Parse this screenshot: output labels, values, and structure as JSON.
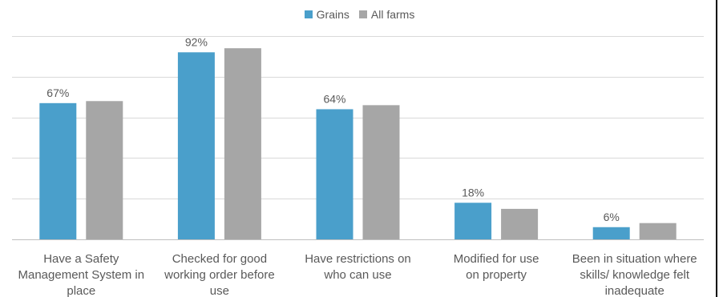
{
  "chart_data": {
    "type": "bar",
    "categories": [
      [
        "Have a Safety",
        "Management System in",
        "place"
      ],
      [
        "Checked for good",
        "working order before",
        "use"
      ],
      [
        "Have restrictions on",
        "who can use"
      ],
      [
        "Modified for use",
        "on property"
      ],
      [
        "Been in situation where",
        "skills/ knowledge felt",
        "inadequate"
      ]
    ],
    "series": [
      {
        "name": "Grains",
        "values": [
          67,
          92,
          64,
          18,
          6
        ],
        "labels": [
          "67%",
          "92%",
          "64%",
          "18%",
          "6%"
        ]
      },
      {
        "name": "All farms",
        "values": [
          68,
          94,
          66,
          15,
          8
        ],
        "labels": null
      }
    ],
    "ylim": [
      0,
      100
    ],
    "gridlines": [
      0,
      20,
      40,
      60,
      80,
      100
    ],
    "grid": true,
    "legend_position": "top-center",
    "colors": {
      "Grains": "#4a9fcb",
      "All farms": "#a6a6a6",
      "grid": "#d9d9d9",
      "text": "#595959"
    }
  }
}
